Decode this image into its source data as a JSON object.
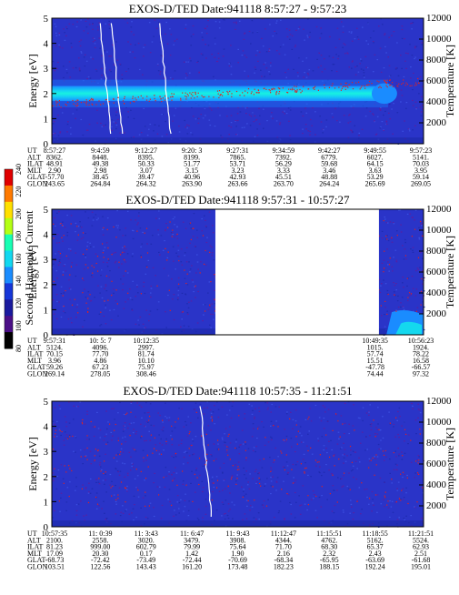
{
  "chart_data": [
    {
      "type": "heatmap",
      "title": "EXOS-D/TED   Date:941118   8:57:27 - 9:57:23",
      "ylabel": "Energy [eV]",
      "y2label": "Temperature [K]",
      "ylim": [
        0,
        5
      ],
      "y2lim": [
        0,
        12000
      ],
      "yticks": [
        "0",
        "1",
        "2",
        "3",
        "4",
        "5"
      ],
      "y2ticks": [
        "2000",
        "4000",
        "6000",
        "8000",
        "10000",
        "12000"
      ],
      "data_gaps": [],
      "features": {
        "band_center_eV": 2.0,
        "band_halfwidth_eV": 0.3,
        "band_end_fraction": 0.88,
        "spikes": [
          0.13,
          0.16,
          0.29
        ]
      },
      "table": {
        "rows": [
          {
            "label": "UT",
            "values": [
              "8:57:27",
              "9:4:59",
              "9:12:27",
              "9:20: 3",
              "9:27:31",
              "9:34:59",
              "9:42:27",
              "9:49:55",
              "9:57:23"
            ]
          },
          {
            "label": "ALT",
            "values": [
              "8362.",
              "8448.",
              "8395.",
              "8199.",
              "7865.",
              "7392.",
              "6779.",
              "6027.",
              "5141."
            ]
          },
          {
            "label": "ILAT",
            "values": [
              "48.91",
              "49.38",
              "50.33",
              "51.77",
              "53.71",
              "56.29",
              "59.68",
              "64.15",
              "70.03"
            ]
          },
          {
            "label": "MLT",
            "values": [
              "2.90",
              "2.98",
              "3.07",
              "3.15",
              "3.23",
              "3.33",
              "3.46",
              "3.63",
              "3.95"
            ]
          },
          {
            "label": "GLAT",
            "values": [
              "-57.70",
              "38.45",
              "39.47",
              "40.96",
              "42.93",
              "45.51",
              "48.88",
              "53.29",
              "59.14"
            ]
          },
          {
            "label": "GLON",
            "values": [
              "243.65",
              "264.84",
              "264.32",
              "263.90",
              "263.66",
              "263.70",
              "264.24",
              "265.69",
              "269.05"
            ]
          }
        ]
      }
    },
    {
      "type": "heatmap",
      "title": "EXOS-D/TED    Date:941118   9:57:31 - 10:57:27",
      "ylabel": "Energy [eV]",
      "y2label": "Temperature [K]",
      "ylim": [
        0,
        5
      ],
      "y2lim": [
        0,
        12000
      ],
      "yticks": [
        "0",
        "1",
        "2",
        "3",
        "4",
        "5"
      ],
      "y2ticks": [
        "2000",
        "4000",
        "6000",
        "8000",
        "10000",
        "12000"
      ],
      "data_gaps": [
        [
          0.44,
          0.88
        ]
      ],
      "features": {
        "low_energy_blob_fraction": [
          0.9,
          1.0
        ]
      },
      "table": {
        "rows": [
          {
            "label": "UT",
            "values": [
              "9:57:31",
              "10: 5: 7",
              "10:12:35",
              "",
              "",
              "",
              "",
              "10:49:35",
              "10:56:23"
            ]
          },
          {
            "label": "ALT",
            "values": [
              "5124.",
              "4096.",
              "2997.",
              "",
              "",
              "",
              "",
              "1015.",
              "1924."
            ]
          },
          {
            "label": "ILAT",
            "values": [
              "70.15",
              "77.70",
              "81.74",
              "",
              "",
              "",
              "",
              "57.74",
              "78.22"
            ]
          },
          {
            "label": "MLT",
            "values": [
              "3.96",
              "4.86",
              "10.10",
              "",
              "",
              "",
              "",
              "15.51",
              "16.58"
            ]
          },
          {
            "label": "GLAT",
            "values": [
              "59.26",
              "67.23",
              "75.97",
              "",
              "",
              "",
              "",
              "-47.78",
              "-66.57"
            ]
          },
          {
            "label": "GLON",
            "values": [
              "269.14",
              "278.05",
              "308.46",
              "",
              "",
              "",
              "",
              "74.44",
              "97.32"
            ]
          }
        ]
      }
    },
    {
      "type": "heatmap",
      "title": "EXOS-D/TED   Date:941118   10:57:35 - 11:21:51",
      "ylabel": "Energy [eV]",
      "y2label": "Temperature [K]",
      "ylim": [
        0,
        5
      ],
      "y2lim": [
        0,
        12000
      ],
      "yticks": [
        "0",
        "1",
        "2",
        "3",
        "4",
        "5"
      ],
      "y2ticks": [
        "2000",
        "4000",
        "6000",
        "8000",
        "10000",
        "12000"
      ],
      "data_gaps": [],
      "features": {
        "spikes": [
          0.4
        ]
      },
      "table": {
        "rows": [
          {
            "label": "UT",
            "values": [
              "10:57:35",
              "11: 0:39",
              "11: 3:43",
              "11: 6:47",
              "11: 9:43",
              "11:12:47",
              "11:15:51",
              "11:18:55",
              "11:21:51"
            ]
          },
          {
            "label": "ALT",
            "values": [
              "2100.",
              "2558.",
              "3020.",
              "3479.",
              "3908.",
              "4344.",
              "4762.",
              "5162.",
              "5524."
            ]
          },
          {
            "label": "ILAT",
            "values": [
              "81.23",
              "999.00",
              "602.79",
              "79.99",
              "75.64",
              "71.70",
              "68.30",
              "65.37",
              "62.93"
            ]
          },
          {
            "label": "MLT",
            "values": [
              "17.09",
              "20.30",
              "0.17",
              "1.42",
              "1.90",
              "2.16",
              "2.32",
              "2.43",
              "2.51"
            ]
          },
          {
            "label": "GLAT",
            "values": [
              "-68.73",
              "-72.42",
              "-73.49",
              "-72.44",
              "-70.69",
              "-68.34",
              "-65.95",
              "-63.69",
              "-61.68"
            ]
          },
          {
            "label": "GLON",
            "values": [
              "103.51",
              "122.56",
              "143.43",
              "161.20",
              "173.48",
              "182.23",
              "188.15",
              "192.24",
              "195.01"
            ]
          }
        ]
      }
    }
  ],
  "colorbar": {
    "label": "Second Harmonic Current",
    "ticks": [
      "80",
      "100",
      "120",
      "140",
      "160",
      "180",
      "200",
      "220",
      "240"
    ],
    "colors": [
      "#000000",
      "#4b0f87",
      "#1a1a9e",
      "#1636d8",
      "#1a8cff",
      "#12d8f0",
      "#18ffb4",
      "#b4ff14",
      "#ffe000",
      "#ff7a00",
      "#e00000"
    ]
  }
}
